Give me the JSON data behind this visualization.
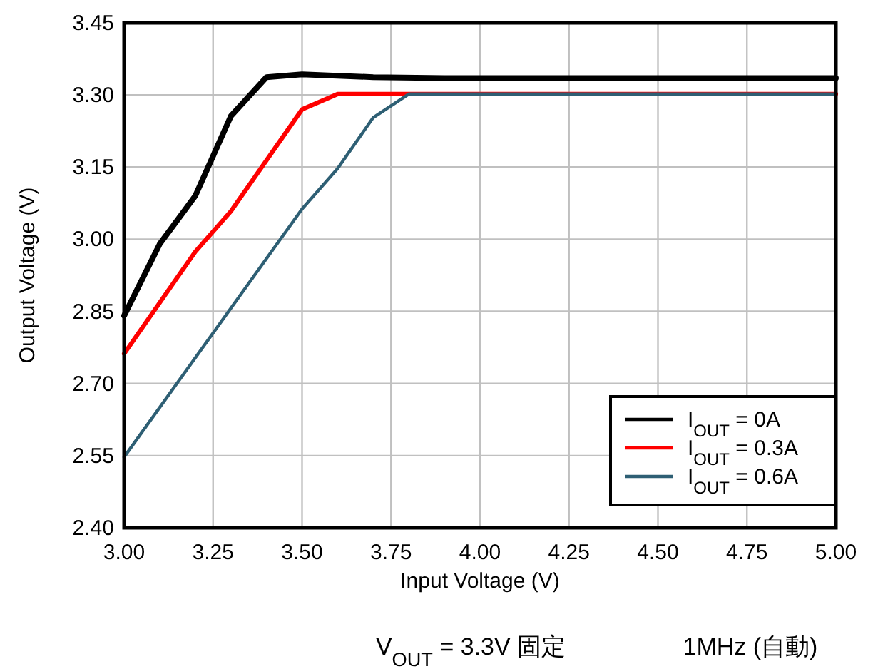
{
  "chart_data": {
    "type": "line",
    "xlabel": "Input Voltage (V)",
    "ylabel": "Output Voltage (V)",
    "xlim": [
      3.0,
      5.0
    ],
    "ylim": [
      2.4,
      3.45
    ],
    "xticks": [
      {
        "value": 3.0,
        "label": "3.00"
      },
      {
        "value": 3.25,
        "label": "3.25"
      },
      {
        "value": 3.5,
        "label": "3.50"
      },
      {
        "value": 3.75,
        "label": "3.75"
      },
      {
        "value": 4.0,
        "label": "4.00"
      },
      {
        "value": 4.25,
        "label": "4.25"
      },
      {
        "value": 4.5,
        "label": "4.50"
      },
      {
        "value": 4.75,
        "label": "4.75"
      },
      {
        "value": 5.0,
        "label": "5.00"
      }
    ],
    "yticks": [
      {
        "value": 2.4,
        "label": "2.40"
      },
      {
        "value": 2.55,
        "label": "2.55"
      },
      {
        "value": 2.7,
        "label": "2.70"
      },
      {
        "value": 2.85,
        "label": "2.85"
      },
      {
        "value": 3.0,
        "label": "3.00"
      },
      {
        "value": 3.15,
        "label": "3.15"
      },
      {
        "value": 3.3,
        "label": "3.30"
      },
      {
        "value": 3.45,
        "label": "3.45"
      }
    ],
    "grid": true,
    "legend": "bottom right",
    "marker": "none",
    "line_style": "solid",
    "series": [
      {
        "name": "I$_{OUT}$ = 0A",
        "color": "#000000",
        "x": [
          3.0,
          3.1,
          3.2,
          3.3,
          3.4,
          3.5,
          3.7,
          3.9,
          5.0
        ],
        "values": [
          2.841,
          2.99,
          3.09,
          3.256,
          3.337,
          3.343,
          3.337,
          3.335,
          3.335
        ]
      },
      {
        "name": "I$_{OUT}$ = 0.3A",
        "color": "#ff0000",
        "x": [
          3.0,
          3.2,
          3.3,
          3.5,
          3.6,
          5.0
        ],
        "values": [
          2.762,
          2.974,
          3.058,
          3.27,
          3.302,
          3.302
        ]
      },
      {
        "name": "I$_{OUT}$ = 0.6A",
        "color": "#2e5f74",
        "x": [
          3.0,
          3.5,
          3.6,
          3.7,
          3.8,
          5.0
        ],
        "values": [
          2.547,
          3.063,
          3.147,
          3.253,
          3.302,
          3.302
        ]
      }
    ],
    "annotations": [
      "V$_{OUT}$ = 3.3V 固定",
      "1MHz (自動)"
    ]
  }
}
